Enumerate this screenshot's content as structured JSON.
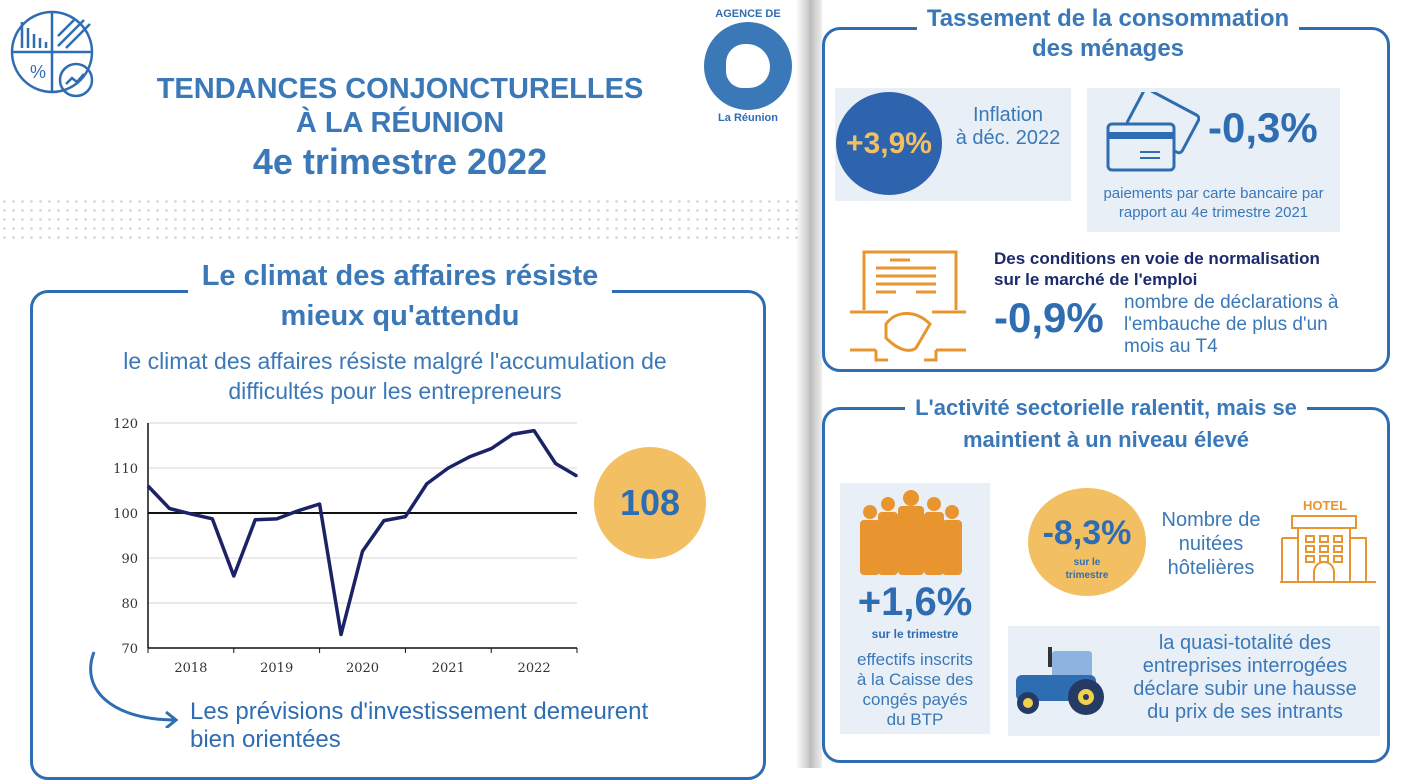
{
  "colors": {
    "blue": "#2f6db3",
    "navy": "#1b2a6b",
    "orange": "#e8952f",
    "yellow": "#f2c063",
    "panel": "#e9eff7"
  },
  "header": {
    "line1": "TENDANCES CONJONCTURELLES",
    "line2": "À LA RÉUNION",
    "line3": "4e trimestre 2022",
    "logo_top": "AGENCE DE",
    "logo_bottom": "La Réunion"
  },
  "climate": {
    "title1": "Le climat des affaires résiste",
    "title2": "mieux qu'attendu",
    "subtitle1": "le climat des affaires résiste malgré l'accumulation de",
    "subtitle2": "difficultés pour les entrepreneurs",
    "badge": "108",
    "footer1": "Les prévisions d'investissement demeurent",
    "footer2": "bien orientées"
  },
  "chart_data": {
    "type": "line",
    "ylim": [
      70,
      120
    ],
    "yticks": [
      "120",
      "110",
      "100",
      "90",
      "80",
      "70"
    ],
    "xticks": [
      "2018",
      "2019",
      "2020",
      "2021",
      "2022"
    ],
    "reference_line": 100,
    "grid": true,
    "values": [
      106,
      101,
      99.8,
      98.7,
      86,
      98.5,
      98.7,
      100.5,
      102,
      73,
      91.5,
      98.3,
      99.2,
      106.5,
      110,
      112.5,
      114.3,
      117.5,
      118.3,
      111,
      108.2
    ]
  },
  "consumption": {
    "title1": "Tassement de la consommation",
    "title2": "des ménages",
    "inflation_value": "+3,9%",
    "inflation_label1": "Inflation",
    "inflation_label2": "à déc. 2022",
    "card_value": "-0,3%",
    "card_label1": "paiements par carte bancaire par",
    "card_label2": "rapport au 4e trimestre 2021",
    "jobs_title1": "Des conditions en voie de normalisation",
    "jobs_title2": "sur le marché de l'emploi",
    "jobs_value": "-0,9%",
    "jobs_label1": "nombre de déclarations à",
    "jobs_label2": "l'embauche de plus d'un",
    "jobs_label3": "mois au T4"
  },
  "sector": {
    "title1": "L'activité sectorielle ralentit, mais se",
    "title2": "maintient à un niveau élevé",
    "btp_value": "+1,6%",
    "btp_sub": "sur le trimestre",
    "btp_label1": "effectifs inscrits",
    "btp_label2": "à la Caisse des",
    "btp_label3": "congés payés",
    "btp_label4": "du BTP",
    "hotel_value": "-8,3%",
    "hotel_sub1": "sur le",
    "hotel_sub2": "trimestre",
    "hotel_label1": "Nombre de",
    "hotel_label2": "nuitées",
    "hotel_label3": "hôtelières",
    "hotel_sign": "HOTEL",
    "farm_label1": "la quasi-totalité des",
    "farm_label2": "entreprises interrogées",
    "farm_label3": "déclare subir une hausse",
    "farm_label4": "du prix de ses intrants"
  }
}
